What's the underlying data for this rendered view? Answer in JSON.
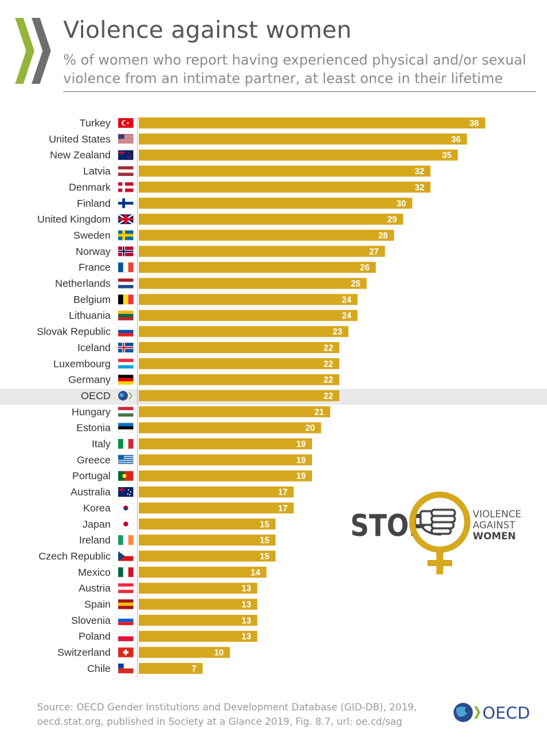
{
  "header": {
    "title": "Violence against women",
    "subtitle_line1": "% of women who report having experienced physical and/or sexual",
    "subtitle_line2": "violence from an intimate partner, at least once in their lifetime"
  },
  "chart_data": {
    "type": "bar",
    "orientation": "horizontal",
    "categories": [
      "Turkey",
      "United States",
      "New Zealand",
      "Latvia",
      "Denmark",
      "Finland",
      "United Kingdom",
      "Sweden",
      "Norway",
      "France",
      "Netherlands",
      "Belgium",
      "Lithuania",
      "Slovak Republic",
      "Iceland",
      "Luxembourg",
      "Germany",
      "OECD",
      "Hungary",
      "Estonia",
      "Italy",
      "Greece",
      "Portugal",
      "Australia",
      "Korea",
      "Japan",
      "Ireland",
      "Czech Republic",
      "Mexico",
      "Austria",
      "Spain",
      "Slovenia",
      "Poland",
      "Switzerland",
      "Chile"
    ],
    "values": [
      38,
      36,
      35,
      32,
      32,
      30,
      29,
      28,
      27,
      26,
      25,
      24,
      24,
      23,
      22,
      22,
      22,
      22,
      21,
      20,
      19,
      19,
      19,
      17,
      17,
      15,
      15,
      15,
      14,
      13,
      13,
      13,
      13,
      10,
      7
    ],
    "highlight": "OECD",
    "xlim": [
      0,
      38
    ],
    "bar_color": "#d6a81e",
    "label_color": "#ffffff",
    "highlight_band_color": "#e9e9e9",
    "grid": false
  },
  "badge": {
    "stop_text": "STOP",
    "line1": "VIOLENCE",
    "line2": "AGAINST",
    "line3": "WOMEN",
    "accent": "#d6a81e"
  },
  "footer": {
    "source_line1": "Source: OECD Gender Institutions and Development Database (GID-DB), 2019,",
    "source_line2": "oecd.stat.org, published in Society at a Glance 2019, Fig. 8.7, url: oe.cd/sag",
    "logo_text": "OECD"
  },
  "colors": {
    "logo_green": "#94b43b",
    "logo_grey": "#6e6e6e",
    "oecd_blue": "#2a4c8c"
  }
}
